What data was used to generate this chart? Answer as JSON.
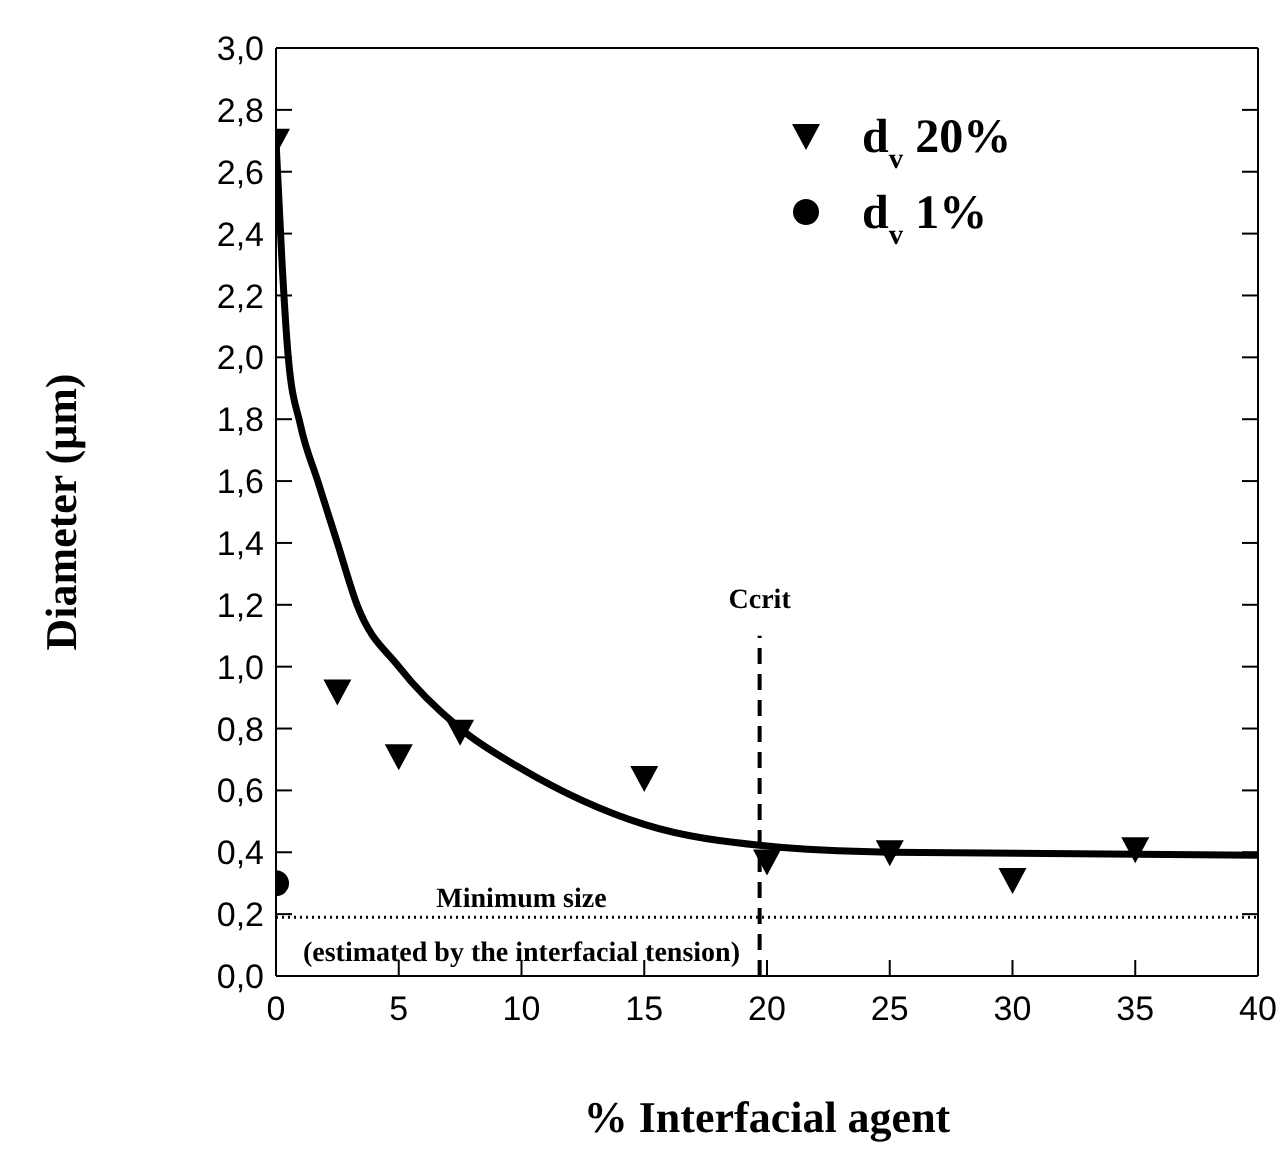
{
  "chart_data": {
    "type": "scatter",
    "xlabel": "% Interfacial agent",
    "ylabel": "Diameter (μm)",
    "xlim": [
      0,
      40
    ],
    "xticks": [
      0,
      5,
      10,
      15,
      20,
      25,
      30,
      35,
      40
    ],
    "ylim": [
      0,
      3
    ],
    "yticks": [
      {
        "value": 0,
        "label": "0,0"
      },
      {
        "value": 0.2,
        "label": "0,2"
      },
      {
        "value": 0.4,
        "label": "0,4"
      },
      {
        "value": 0.6,
        "label": "0,6"
      },
      {
        "value": 0.8,
        "label": "0,8"
      },
      {
        "value": 1.0,
        "label": "1,0"
      },
      {
        "value": 1.2,
        "label": "1,2"
      },
      {
        "value": 1.4,
        "label": "1,4"
      },
      {
        "value": 1.6,
        "label": "1,6"
      },
      {
        "value": 1.8,
        "label": "1,8"
      },
      {
        "value": 2.0,
        "label": "2,0"
      },
      {
        "value": 2.2,
        "label": "2,2"
      },
      {
        "value": 2.4,
        "label": "2,4"
      },
      {
        "value": 2.6,
        "label": "2,6"
      },
      {
        "value": 2.8,
        "label": "2,8"
      },
      {
        "value": 3.0,
        "label": "3,0"
      }
    ],
    "legend": "top right",
    "series": [
      {
        "type": "line",
        "color": "#000000",
        "marker": "none",
        "line_style": "solid",
        "x": [
          0,
          0.25,
          0.5,
          1,
          1.7,
          2.5,
          3.3,
          5,
          7.5,
          10,
          15,
          20,
          25,
          40
        ],
        "values": [
          2.7,
          2.3,
          2.0,
          1.78,
          1.6,
          1.4,
          1.2,
          1.0,
          0.8,
          0.67,
          0.49,
          0.42,
          0.4,
          0.39
        ]
      },
      {
        "type": "line",
        "name": "Ccrit",
        "color": "#000000",
        "marker": "none",
        "line_style": "dashed",
        "x": [
          19.7,
          19.7
        ],
        "values": [
          0,
          1.1
        ]
      },
      {
        "name": "d$_{v}$  20%",
        "color": "#000000",
        "marker": "triangle",
        "x": [
          0,
          2.5,
          5,
          7.5,
          15,
          20,
          25,
          30,
          35
        ],
        "values": [
          2.7,
          0.92,
          0.71,
          0.79,
          0.64,
          0.37,
          0.4,
          0.31,
          0.41
        ]
      },
      {
        "name": "d$_{v}$  1%",
        "color": "#000000",
        "marker": "circle",
        "x": [
          0
        ],
        "values": [
          0.3
        ]
      }
    ],
    "ref_lines": [
      {
        "axis": "y",
        "value": 0.19,
        "line_style": "dotted",
        "color": "#000000",
        "label": "Minimum size\n(estimated by the interfacial tension)"
      }
    ]
  }
}
